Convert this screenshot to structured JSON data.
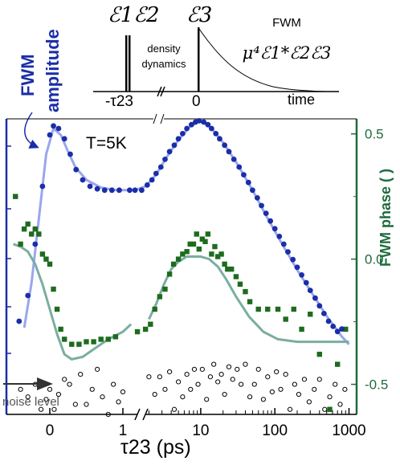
{
  "chart_data": {
    "type": "scatter",
    "title": "",
    "annotation_temperature": "T=5K",
    "xlabel": "τ23 (ps)",
    "x_scale": "linear below 1 ps, break, logarithmic from 1 to 1000 ps",
    "x_ticks": [
      "0",
      "1",
      "10",
      "100",
      "1000"
    ],
    "y_left_label_line1": "FWM",
    "y_left_label_line2": "amplitude",
    "y_left_scale": "log (unlabelled)",
    "y_right_label": "FWM phase (  )",
    "y_right_ticks": [
      "0.5",
      "0.0",
      "-0.5"
    ],
    "y_right_range": [
      -0.62,
      0.56
    ],
    "noise_label": "noise level",
    "colors": {
      "amplitude_points": "#1a2ea8",
      "amplitude_fit": "#9aa6ee",
      "phase_points": "#1e6b1e",
      "phase_fit": "#7aaea0",
      "noise_points": "#000000",
      "right_axis": "#1e6b3c",
      "amplitude_label": "#1a2ea8"
    },
    "pulse_schematic": {
      "pulse_labels": [
        "ℰ1ℰ2",
        "ℰ3"
      ],
      "process_label_line1": "density",
      "process_label_line2": "dynamics",
      "signal_label": "FWM",
      "signal_formula": "μ⁴ℰ1*ℰ2ℰ3",
      "tick_labels": [
        "-τ23",
        "0"
      ],
      "axis_label": "time"
    },
    "series": [
      {
        "name": "FWM amplitude (data)",
        "axis": "left",
        "log10_amplitude": true,
        "points": [
          [
            -0.42,
            -0.5
          ],
          [
            -0.3,
            -0.3
          ],
          [
            -0.2,
            0.1
          ],
          [
            -0.1,
            0.55
          ],
          [
            0.0,
            0.95
          ],
          [
            0.05,
            1.02
          ],
          [
            0.12,
            1.0
          ],
          [
            0.2,
            0.92
          ],
          [
            0.28,
            0.8
          ],
          [
            0.36,
            0.68
          ],
          [
            0.45,
            0.6
          ],
          [
            0.55,
            0.55
          ],
          [
            0.65,
            0.53
          ],
          [
            0.75,
            0.52
          ],
          [
            0.85,
            0.52
          ],
          [
            0.95,
            0.52
          ],
          [
            1.1,
            0.52
          ],
          [
            1.3,
            0.52
          ],
          [
            1.6,
            0.52
          ],
          [
            1.9,
            0.56
          ],
          [
            2.2,
            0.6
          ],
          [
            2.5,
            0.65
          ],
          [
            2.9,
            0.7
          ],
          [
            3.3,
            0.76
          ],
          [
            3.8,
            0.82
          ],
          [
            4.4,
            0.87
          ],
          [
            5.0,
            0.92
          ],
          [
            5.7,
            0.96
          ],
          [
            6.5,
            1.0
          ],
          [
            7.5,
            1.03
          ],
          [
            8.5,
            1.05
          ],
          [
            9.5,
            1.06
          ],
          [
            11,
            1.05
          ],
          [
            12.5,
            1.03
          ],
          [
            14,
            1.0
          ],
          [
            16,
            0.96
          ],
          [
            18,
            0.92
          ],
          [
            21,
            0.87
          ],
          [
            24,
            0.82
          ],
          [
            28,
            0.76
          ],
          [
            33,
            0.7
          ],
          [
            38,
            0.64
          ],
          [
            44,
            0.58
          ],
          [
            50,
            0.52
          ],
          [
            58,
            0.46
          ],
          [
            66,
            0.4
          ],
          [
            76,
            0.34
          ],
          [
            87,
            0.28
          ],
          [
            100,
            0.22
          ],
          [
            115,
            0.16
          ],
          [
            132,
            0.1
          ],
          [
            150,
            0.04
          ],
          [
            175,
            -0.02
          ],
          [
            200,
            -0.08
          ],
          [
            230,
            -0.14
          ],
          [
            265,
            -0.2
          ],
          [
            300,
            -0.26
          ],
          [
            350,
            -0.32
          ],
          [
            400,
            -0.38
          ],
          [
            460,
            -0.44
          ],
          [
            530,
            -0.5
          ],
          [
            610,
            -0.54
          ],
          [
            700,
            -0.58
          ],
          [
            800,
            -0.56
          ]
        ]
      },
      {
        "name": "FWM amplitude (fit)",
        "axis": "left",
        "log10_amplitude": true,
        "points": [
          [
            -0.35,
            -0.55
          ],
          [
            -0.25,
            -0.2
          ],
          [
            -0.15,
            0.3
          ],
          [
            -0.05,
            0.8
          ],
          [
            0.05,
            1.0
          ],
          [
            0.15,
            0.95
          ],
          [
            0.25,
            0.82
          ],
          [
            0.35,
            0.7
          ],
          [
            0.5,
            0.6
          ],
          [
            0.7,
            0.54
          ],
          [
            0.9,
            0.52
          ],
          [
            1.0,
            0.52
          ],
          [
            1.3,
            0.52
          ],
          [
            1.8,
            0.55
          ],
          [
            2.5,
            0.64
          ],
          [
            3.5,
            0.78
          ],
          [
            5.0,
            0.91
          ],
          [
            7.0,
            1.01
          ],
          [
            9.0,
            1.05
          ],
          [
            11,
            1.05
          ],
          [
            14,
            1.0
          ],
          [
            20,
            0.89
          ],
          [
            30,
            0.74
          ],
          [
            50,
            0.52
          ],
          [
            80,
            0.3
          ],
          [
            120,
            0.12
          ],
          [
            200,
            -0.1
          ],
          [
            300,
            -0.26
          ],
          [
            500,
            -0.46
          ],
          [
            800,
            -0.62
          ],
          [
            1000,
            -0.68
          ]
        ]
      },
      {
        "name": "FWM phase (data)",
        "axis": "right",
        "points": [
          [
            -0.47,
            0.25
          ],
          [
            -0.4,
            0.06
          ],
          [
            -0.35,
            0.12
          ],
          [
            -0.3,
            0.14
          ],
          [
            -0.25,
            0.1
          ],
          [
            -0.2,
            0.12
          ],
          [
            -0.15,
            0.1
          ],
          [
            -0.1,
            0.02
          ],
          [
            -0.05,
            0.0
          ],
          [
            0.0,
            -0.02
          ],
          [
            0.05,
            -0.12
          ],
          [
            0.1,
            -0.2
          ],
          [
            0.15,
            -0.28
          ],
          [
            0.2,
            -0.32
          ],
          [
            0.3,
            -0.34
          ],
          [
            0.4,
            -0.34
          ],
          [
            0.5,
            -0.33
          ],
          [
            0.6,
            -0.33
          ],
          [
            0.7,
            -0.32
          ],
          [
            0.8,
            -0.32
          ],
          [
            0.9,
            -0.31
          ],
          [
            1.4,
            -0.29
          ],
          [
            1.8,
            -0.28
          ],
          [
            2.1,
            -0.26
          ],
          [
            2.4,
            -0.2
          ],
          [
            2.8,
            -0.15
          ],
          [
            3.3,
            -0.12
          ],
          [
            3.8,
            -0.06
          ],
          [
            4.3,
            -0.02
          ],
          [
            5.0,
            0.0
          ],
          [
            5.7,
            0.02
          ],
          [
            6.5,
            0.03
          ],
          [
            7.2,
            0.06
          ],
          [
            8.0,
            0.06
          ],
          [
            8.8,
            0.1
          ],
          [
            9.5,
            0.04
          ],
          [
            10.5,
            0.08
          ],
          [
            11.5,
            0.07
          ],
          [
            12.5,
            0.1
          ],
          [
            14,
            0.02
          ],
          [
            15.5,
            0.05
          ],
          [
            17,
            0.01
          ],
          [
            19,
            0.02
          ],
          [
            21,
            -0.02
          ],
          [
            23,
            -0.04
          ],
          [
            26,
            -0.04
          ],
          [
            30,
            -0.07
          ],
          [
            34,
            -0.1
          ],
          [
            40,
            -0.13
          ],
          [
            46,
            -0.17
          ],
          [
            60,
            -0.2
          ],
          [
            80,
            -0.2
          ],
          [
            110,
            -0.2
          ],
          [
            140,
            -0.24
          ],
          [
            180,
            -0.2
          ],
          [
            230,
            -0.28
          ],
          [
            300,
            -0.22
          ],
          [
            400,
            -0.38
          ],
          [
            550,
            -0.6
          ],
          [
            700,
            -0.42
          ],
          [
            900,
            -0.28
          ]
        ]
      },
      {
        "name": "FWM phase (fit)",
        "axis": "right",
        "points": [
          [
            -0.5,
            0.06
          ],
          [
            -0.4,
            0.05
          ],
          [
            -0.3,
            0.03
          ],
          [
            -0.2,
            -0.02
          ],
          [
            -0.1,
            -0.1
          ],
          [
            0.0,
            -0.2
          ],
          [
            0.1,
            -0.3
          ],
          [
            0.2,
            -0.38
          ],
          [
            0.3,
            -0.4
          ],
          [
            0.45,
            -0.39
          ],
          [
            0.6,
            -0.36
          ],
          [
            0.8,
            -0.32
          ],
          [
            1.0,
            -0.29
          ],
          [
            1.15,
            -0.26
          ],
          [
            2.0,
            -0.24
          ],
          [
            2.5,
            -0.18
          ],
          [
            3.2,
            -0.1
          ],
          [
            4.0,
            -0.04
          ],
          [
            5.0,
            -0.01
          ],
          [
            6.5,
            0.01
          ],
          [
            8.0,
            0.01
          ],
          [
            10,
            0.01
          ],
          [
            13,
            0.0
          ],
          [
            17,
            -0.03
          ],
          [
            22,
            -0.08
          ],
          [
            30,
            -0.15
          ],
          [
            45,
            -0.23
          ],
          [
            70,
            -0.29
          ],
          [
            110,
            -0.32
          ],
          [
            200,
            -0.33
          ],
          [
            400,
            -0.33
          ],
          [
            700,
            -0.33
          ],
          [
            1000,
            -0.33
          ]
        ]
      },
      {
        "name": "noise level",
        "axis": "right",
        "points": [
          [
            -0.4,
            -0.52
          ],
          [
            -0.3,
            -0.55
          ],
          [
            -0.2,
            -0.5
          ],
          [
            -0.12,
            -0.6
          ],
          [
            -0.05,
            -0.56
          ],
          [
            0.0,
            -0.52
          ],
          [
            0.06,
            -0.6
          ],
          [
            0.12,
            -0.54
          ],
          [
            0.2,
            -0.48
          ],
          [
            0.27,
            -0.5
          ],
          [
            0.35,
            -0.58
          ],
          [
            0.42,
            -0.46
          ],
          [
            0.5,
            -0.58
          ],
          [
            0.58,
            -0.52
          ],
          [
            0.65,
            -0.44
          ],
          [
            0.72,
            -0.55
          ],
          [
            0.8,
            -0.62
          ],
          [
            0.87,
            -0.5
          ],
          [
            0.94,
            -0.57
          ],
          [
            1.0,
            -0.53
          ],
          [
            2.0,
            -0.47
          ],
          [
            2.4,
            -0.54
          ],
          [
            2.8,
            -0.47
          ],
          [
            3.3,
            -0.52
          ],
          [
            3.8,
            -0.45
          ],
          [
            4.4,
            -0.6
          ],
          [
            5.0,
            -0.49
          ],
          [
            5.7,
            -0.55
          ],
          [
            6.5,
            -0.46
          ],
          [
            7.3,
            -0.52
          ],
          [
            8.2,
            -0.44
          ],
          [
            9.2,
            -0.5
          ],
          [
            10.5,
            -0.44
          ],
          [
            12,
            -0.56
          ],
          [
            13.5,
            -0.47
          ],
          [
            15,
            -0.42
          ],
          [
            17,
            -0.49
          ],
          [
            19,
            -0.46
          ],
          [
            21,
            -0.54
          ],
          [
            24,
            -0.43
          ],
          [
            27,
            -0.48
          ],
          [
            31,
            -0.44
          ],
          [
            35,
            -0.5
          ],
          [
            40,
            -0.42
          ],
          [
            46,
            -0.55
          ],
          [
            53,
            -0.5
          ],
          [
            60,
            -0.44
          ],
          [
            70,
            -0.56
          ],
          [
            80,
            -0.47
          ],
          [
            92,
            -0.53
          ],
          [
            105,
            -0.45
          ],
          [
            120,
            -0.52
          ],
          [
            140,
            -0.46
          ],
          [
            160,
            -0.6
          ],
          [
            185,
            -0.5
          ],
          [
            210,
            -0.54
          ],
          [
            250,
            -0.48
          ],
          [
            290,
            -0.57
          ],
          [
            340,
            -0.52
          ],
          [
            400,
            -0.48
          ],
          [
            470,
            -0.6
          ],
          [
            550,
            -0.55
          ],
          [
            650,
            -0.5
          ],
          [
            760,
            -0.58
          ],
          [
            880,
            -0.52
          ]
        ]
      }
    ]
  }
}
